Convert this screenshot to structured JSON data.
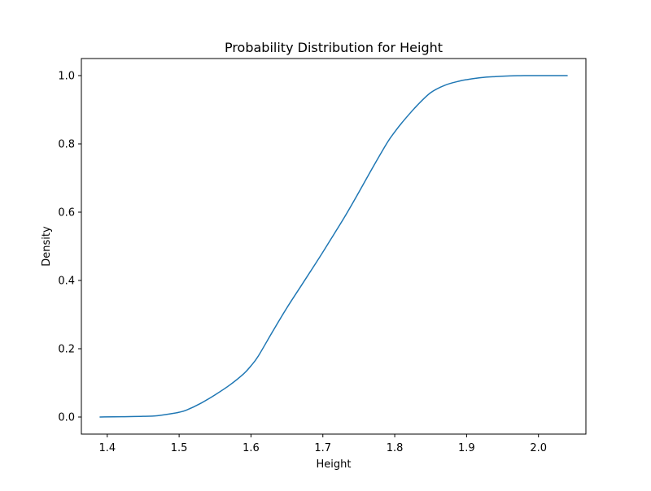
{
  "chart_data": {
    "type": "line",
    "title": "Probability Distribution for Height",
    "xlabel": "Height",
    "ylabel": "Density",
    "xlim": [
      1.364,
      2.066
    ],
    "ylim": [
      -0.05,
      1.05
    ],
    "x_ticks": [
      {
        "value": 1.4,
        "label": "1.4"
      },
      {
        "value": 1.5,
        "label": "1.5"
      },
      {
        "value": 1.6,
        "label": "1.6"
      },
      {
        "value": 1.7,
        "label": "1.7"
      },
      {
        "value": 1.8,
        "label": "1.8"
      },
      {
        "value": 1.9,
        "label": "1.9"
      },
      {
        "value": 2.0,
        "label": "2.0"
      }
    ],
    "y_ticks": [
      {
        "value": 0.0,
        "label": "0.0"
      },
      {
        "value": 0.2,
        "label": "0.2"
      },
      {
        "value": 0.4,
        "label": "0.4"
      },
      {
        "value": 0.6,
        "label": "0.6"
      },
      {
        "value": 0.8,
        "label": "0.8"
      },
      {
        "value": 1.0,
        "label": "1.0"
      }
    ],
    "grid": false,
    "legend": "none",
    "series": [
      {
        "color": "#1f77b4",
        "x": [
          1.39,
          1.42,
          1.45,
          1.47,
          1.49,
          1.5,
          1.51,
          1.53,
          1.55,
          1.57,
          1.59,
          1.6,
          1.61,
          1.63,
          1.65,
          1.67,
          1.69,
          1.7,
          1.71,
          1.73,
          1.75,
          1.77,
          1.79,
          1.8,
          1.81,
          1.83,
          1.85,
          1.87,
          1.89,
          1.9,
          1.92,
          1.94,
          1.96,
          1.98,
          2.0,
          2.02,
          2.04
        ],
        "y": [
          0.0,
          0.001,
          0.002,
          0.004,
          0.01,
          0.014,
          0.02,
          0.04,
          0.065,
          0.093,
          0.127,
          0.15,
          0.178,
          0.25,
          0.32,
          0.385,
          0.45,
          0.483,
          0.517,
          0.585,
          0.658,
          0.733,
          0.805,
          0.835,
          0.862,
          0.91,
          0.95,
          0.972,
          0.984,
          0.988,
          0.994,
          0.997,
          0.999,
          1.0,
          1.0,
          1.0,
          1.0
        ]
      }
    ]
  }
}
